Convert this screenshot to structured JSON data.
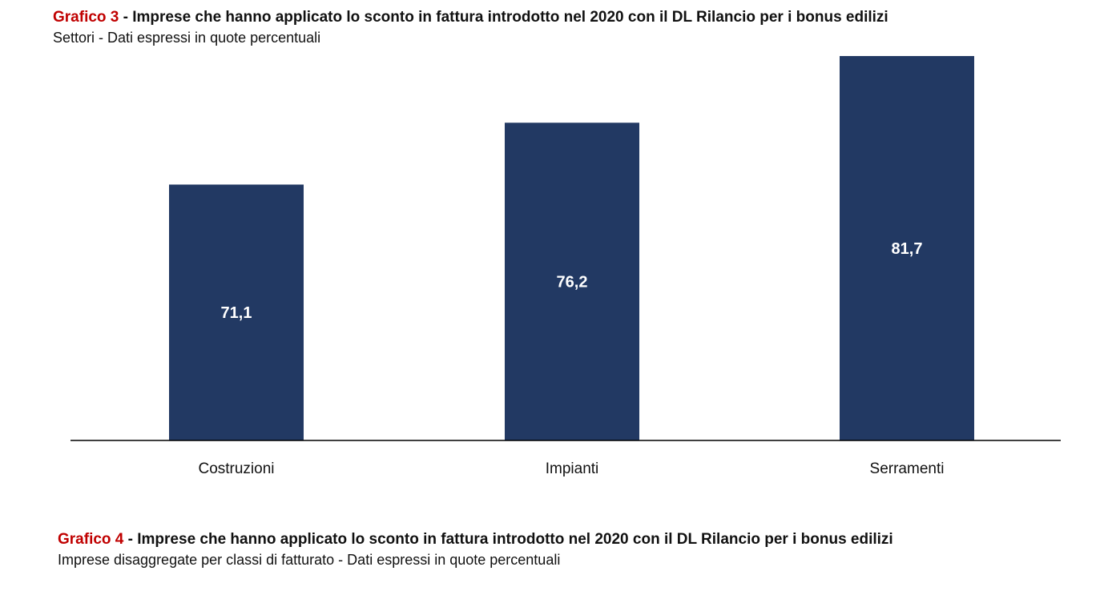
{
  "figure3": {
    "label": "Grafico 3",
    "title": " - Imprese che hanno applicato lo sconto in fattura introdotto nel 2020 con il DL Rilancio per i bonus edilizi",
    "subtitle": "Settori - Dati espressi in quote percentuali"
  },
  "figure4": {
    "label": "Grafico 4",
    "title": " - Imprese che hanno applicato lo sconto in fattura introdotto nel 2020 con il DL Rilancio per i bonus edilizi",
    "subtitle": "Imprese disaggregate per classi di fatturato - Dati espressi in quote percentuali"
  },
  "colors": {
    "bar": "#223963",
    "label_red": "#c00000",
    "bar_label": "#ffffff",
    "axis": "#000000"
  },
  "chart_data": {
    "type": "bar",
    "categories": [
      "Costruzioni",
      "Impianti",
      "Serramenti"
    ],
    "values": [
      71.1,
      76.2,
      81.7
    ],
    "value_labels": [
      "71,1",
      "76,2",
      "81,7"
    ],
    "title": "Grafico 3 - Imprese che hanno applicato lo sconto in fattura introdotto nel 2020 con il DL Rilancio per i bonus edilizi",
    "subtitle": "Settori - Dati espressi in quote percentuali",
    "xlabel": "",
    "ylabel": "",
    "ylim": [
      50,
      85
    ],
    "grid": false,
    "legend": "none"
  }
}
